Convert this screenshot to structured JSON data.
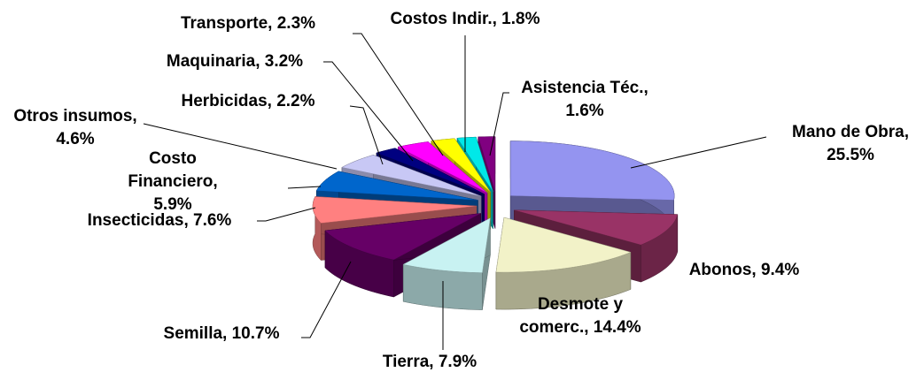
{
  "chart_data": {
    "type": "pie3d",
    "categories": [
      "Mano de Obra",
      "Abonos",
      "Desmote y comerc.",
      "Tierra",
      "Semilla",
      "Insecticidas",
      "Costo Financiero",
      "Otros insumos",
      "Herbicidas",
      "Maquinaria",
      "Transporte",
      "Costos Indir.",
      "Asistencia Téc."
    ],
    "values": [
      25.5,
      9.4,
      14.4,
      7.9,
      10.7,
      7.6,
      5.9,
      4.6,
      2.2,
      3.2,
      2.3,
      1.8,
      1.6
    ],
    "value_labels": [
      [
        "Mano de Obra,",
        "25.5%"
      ],
      [
        "Abonos, 9.4%"
      ],
      [
        "Desmote y",
        "comerc., 14.4%"
      ],
      [
        "Tierra, 7.9%"
      ],
      [
        "Semilla, 10.7%"
      ],
      [
        "Insecticidas, 7.6%"
      ],
      [
        "Costo",
        "Financiero,",
        "5.9%"
      ],
      [
        "Otros insumos,",
        "4.6%"
      ],
      [
        "Herbicidas, 2.2%"
      ],
      [
        "Maquinaria, 3.2%"
      ],
      [
        "Transporte, 2.3%"
      ],
      [
        "Costos Indir., 1.8%"
      ],
      [
        "Asistencia Téc.,",
        "1.6%"
      ]
    ],
    "colors": [
      "#9494f0",
      "#993366",
      "#f2f2c8",
      "#c8f2f2",
      "#660066",
      "#ff8080",
      "#0066cc",
      "#c8c8f5",
      "#000080",
      "#ff00ff",
      "#ffff00",
      "#00e8e8",
      "#800080"
    ]
  }
}
